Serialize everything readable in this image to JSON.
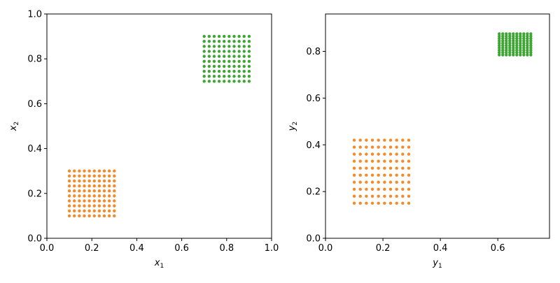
{
  "chart_data": [
    {
      "type": "scatter",
      "xlabel": "x",
      "xlabel_sub": "1",
      "ylabel": "x",
      "ylabel_sub": "2",
      "xlim": [
        0.0,
        1.0
      ],
      "ylim": [
        0.0,
        1.0
      ],
      "xticks": [
        0.0,
        0.2,
        0.4,
        0.6,
        0.8,
        1.0
      ],
      "yticks": [
        0.0,
        0.2,
        0.4,
        0.6,
        0.8,
        1.0
      ],
      "xtick_labels": [
        "0.0",
        "0.2",
        "0.4",
        "0.6",
        "0.8",
        "1.0"
      ],
      "ytick_labels": [
        "0.0",
        "0.2",
        "0.4",
        "0.6",
        "0.8",
        "1.0"
      ],
      "grid": false,
      "series": [
        {
          "color": "#f58a28",
          "grid_points": {
            "x_start": 0.1,
            "x_end": 0.3,
            "x_count": 10,
            "y_start": 0.1,
            "y_end": 0.3,
            "y_count": 10
          }
        },
        {
          "color": "#3fa535",
          "grid_points": {
            "x_start": 0.7,
            "x_end": 0.9,
            "x_count": 10,
            "y_start": 0.7,
            "y_end": 0.9,
            "y_count": 10
          }
        }
      ]
    },
    {
      "type": "scatter",
      "xlabel": "y",
      "xlabel_sub": "1",
      "ylabel": "y",
      "ylabel_sub": "2",
      "xlim": [
        0.0,
        0.78
      ],
      "ylim": [
        0.0,
        0.96
      ],
      "xticks": [
        0.0,
        0.2,
        0.4,
        0.6
      ],
      "yticks": [
        0.0,
        0.2,
        0.4,
        0.6,
        0.8
      ],
      "xtick_labels": [
        "0.0",
        "0.2",
        "0.4",
        "0.6"
      ],
      "ytick_labels": [
        "0.0",
        "0.2",
        "0.4",
        "0.6",
        "0.8"
      ],
      "grid": false,
      "series": [
        {
          "color": "#f58a28",
          "grid_points": {
            "x_start": 0.1,
            "x_end": 0.29,
            "x_count": 10,
            "y_start": 0.15,
            "y_end": 0.42,
            "y_count": 10
          }
        },
        {
          "color": "#3fa535",
          "grid_points": {
            "x_start": 0.605,
            "x_end": 0.715,
            "x_count": 10,
            "y_start": 0.785,
            "y_end": 0.875,
            "y_count": 10
          }
        }
      ]
    }
  ]
}
